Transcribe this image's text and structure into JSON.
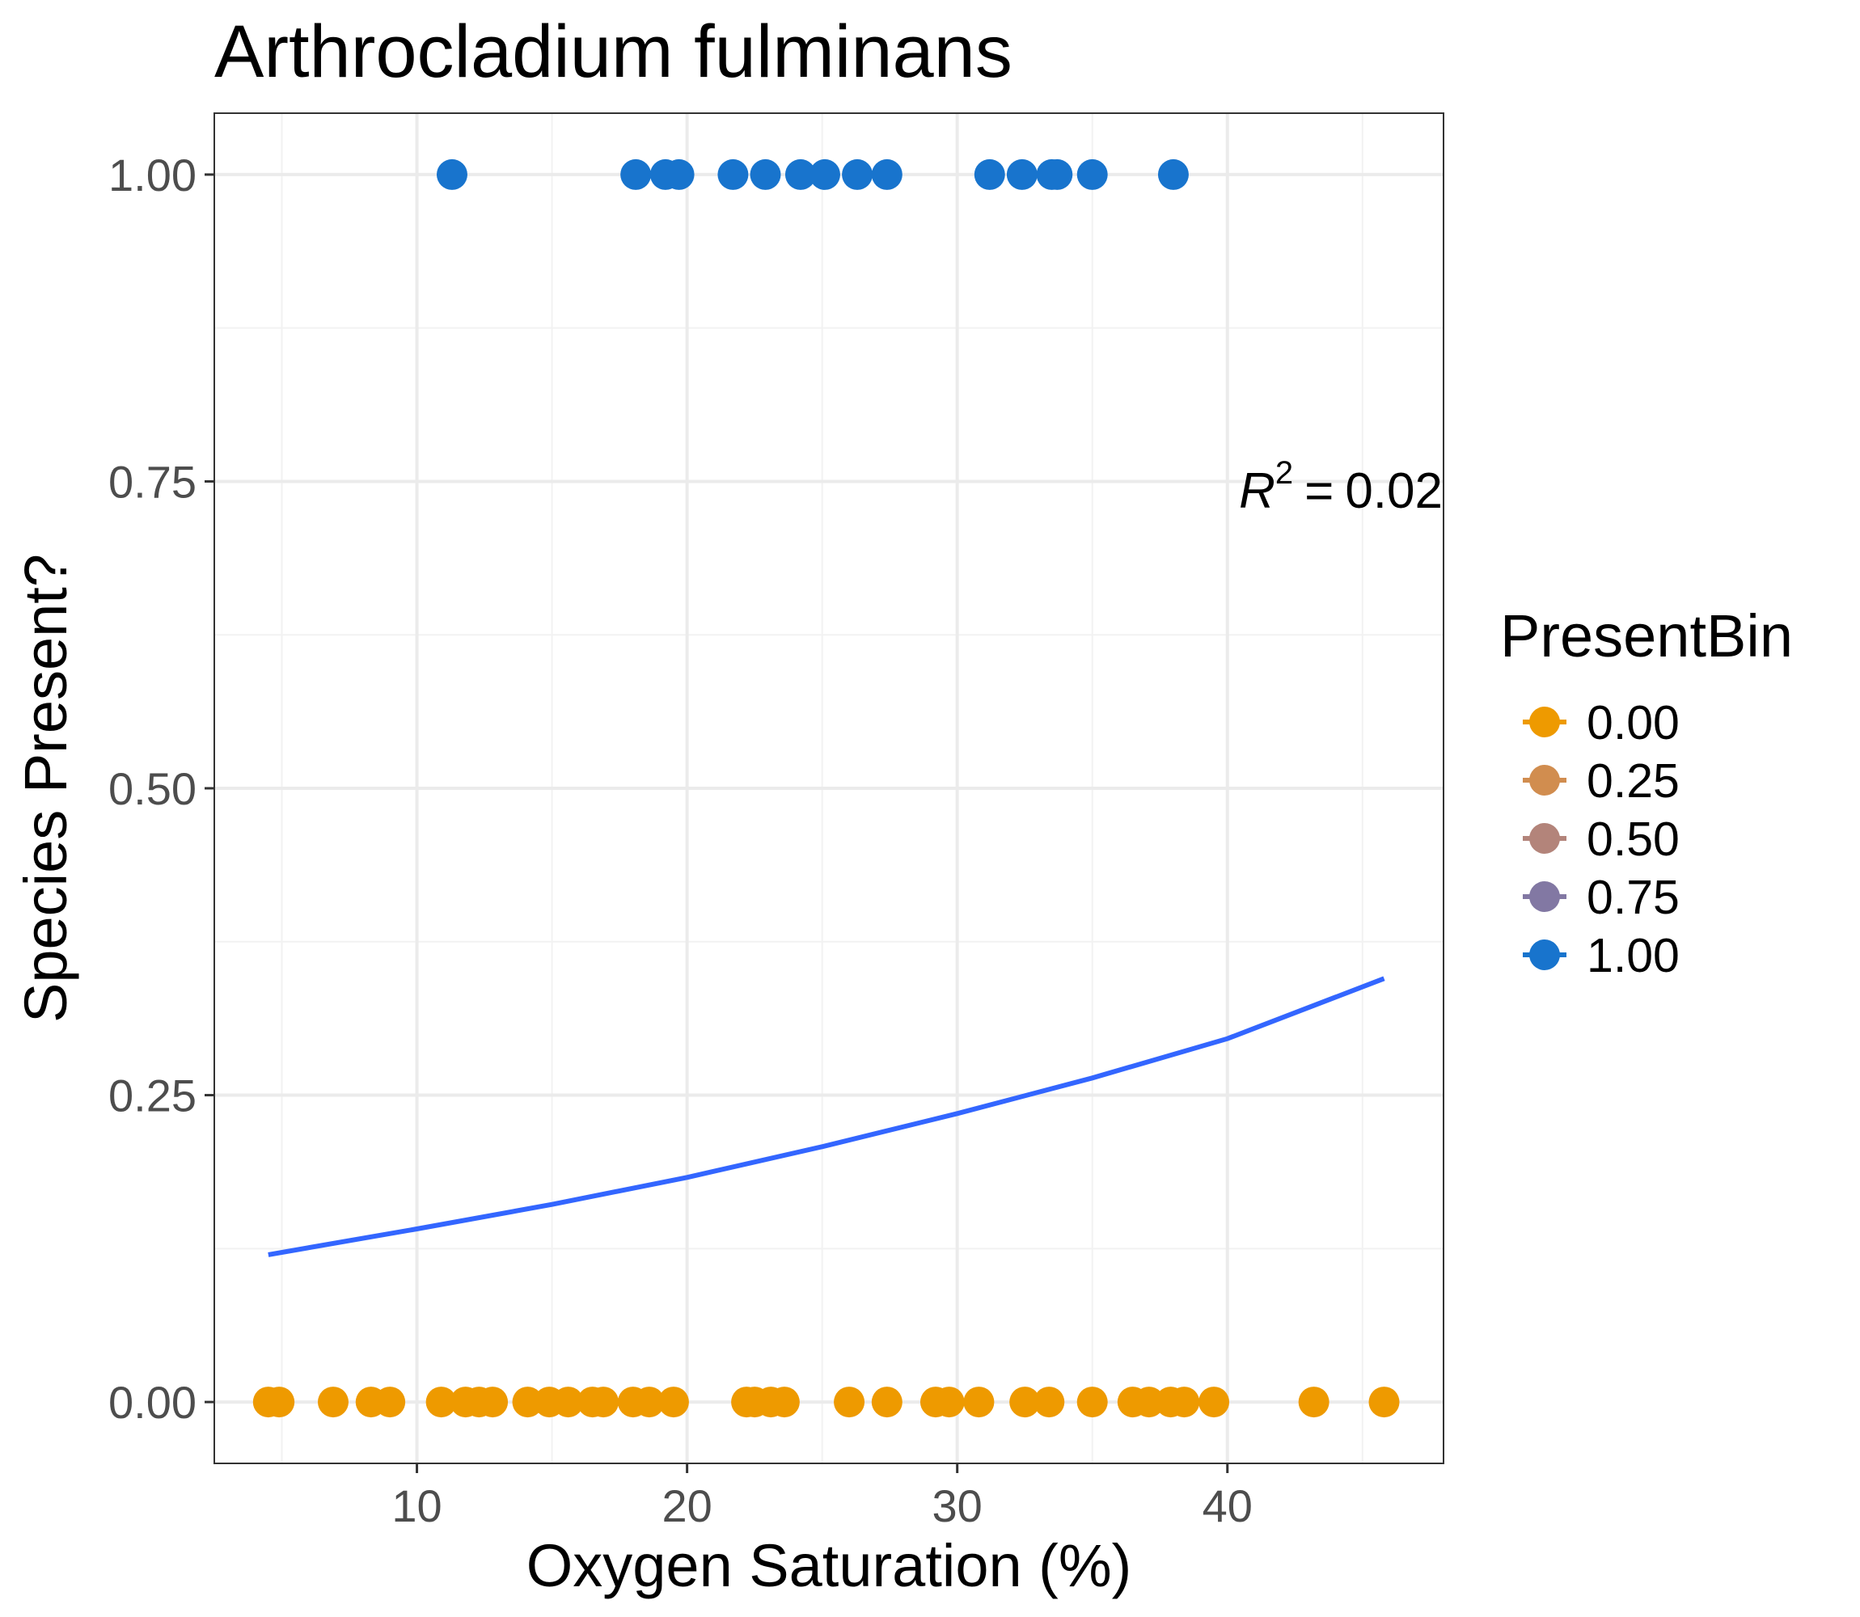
{
  "chart_data": {
    "type": "scatter",
    "title": "Arthrocladium fulminans",
    "xlabel": "Oxygen Saturation (%)",
    "ylabel": "Species Present?",
    "xlim": [
      2.5,
      48
    ],
    "ylim": [
      -0.05,
      1.05
    ],
    "x_ticks": [
      10,
      20,
      30,
      40
    ],
    "x_tick_labels": [
      "10",
      "20",
      "30",
      "40"
    ],
    "y_ticks": [
      0,
      0.25,
      0.5,
      0.75,
      1
    ],
    "y_tick_labels": [
      "0.00",
      "0.25",
      "0.50",
      "0.75",
      "1.00"
    ],
    "grid": true,
    "legend": {
      "title": "PresentBin",
      "placement": "right",
      "entries": [
        {
          "label": "0.00",
          "color": "#EE9A00"
        },
        {
          "label": "0.25",
          "color": "#D18D4F"
        },
        {
          "label": "0.50",
          "color": "#B3847A"
        },
        {
          "label": "0.75",
          "color": "#8278A3"
        },
        {
          "label": "1.00",
          "color": "#1874CD"
        }
      ]
    },
    "annotation": {
      "r_symbol": "R",
      "exponent": "2",
      "equals": "=",
      "value": "0.02"
    },
    "points": [
      {
        "x": 11.3,
        "y": 1
      },
      {
        "x": 18.1,
        "y": 1
      },
      {
        "x": 19.2,
        "y": 1
      },
      {
        "x": 19.7,
        "y": 1
      },
      {
        "x": 21.7,
        "y": 1
      },
      {
        "x": 22.9,
        "y": 1
      },
      {
        "x": 24.2,
        "y": 1
      },
      {
        "x": 25.1,
        "y": 1
      },
      {
        "x": 26.3,
        "y": 1
      },
      {
        "x": 27.4,
        "y": 1
      },
      {
        "x": 31.2,
        "y": 1
      },
      {
        "x": 32.4,
        "y": 1
      },
      {
        "x": 33.5,
        "y": 1
      },
      {
        "x": 33.7,
        "y": 1
      },
      {
        "x": 35.0,
        "y": 1
      },
      {
        "x": 38.0,
        "y": 1
      },
      {
        "x": 4.5,
        "y": 0
      },
      {
        "x": 4.9,
        "y": 0
      },
      {
        "x": 6.9,
        "y": 0
      },
      {
        "x": 8.3,
        "y": 0
      },
      {
        "x": 9.0,
        "y": 0
      },
      {
        "x": 10.9,
        "y": 0
      },
      {
        "x": 11.8,
        "y": 0
      },
      {
        "x": 12.3,
        "y": 0
      },
      {
        "x": 12.8,
        "y": 0
      },
      {
        "x": 14.1,
        "y": 0
      },
      {
        "x": 14.9,
        "y": 0
      },
      {
        "x": 15.6,
        "y": 0
      },
      {
        "x": 16.5,
        "y": 0
      },
      {
        "x": 16.9,
        "y": 0
      },
      {
        "x": 18.0,
        "y": 0
      },
      {
        "x": 18.6,
        "y": 0
      },
      {
        "x": 19.5,
        "y": 0
      },
      {
        "x": 22.2,
        "y": 0
      },
      {
        "x": 22.5,
        "y": 0
      },
      {
        "x": 23.1,
        "y": 0
      },
      {
        "x": 23.6,
        "y": 0
      },
      {
        "x": 26.0,
        "y": 0
      },
      {
        "x": 27.4,
        "y": 0
      },
      {
        "x": 29.2,
        "y": 0
      },
      {
        "x": 29.7,
        "y": 0
      },
      {
        "x": 30.8,
        "y": 0
      },
      {
        "x": 32.5,
        "y": 0
      },
      {
        "x": 33.4,
        "y": 0
      },
      {
        "x": 35.0,
        "y": 0
      },
      {
        "x": 36.5,
        "y": 0
      },
      {
        "x": 37.1,
        "y": 0
      },
      {
        "x": 37.9,
        "y": 0
      },
      {
        "x": 38.4,
        "y": 0
      },
      {
        "x": 39.5,
        "y": 0
      },
      {
        "x": 43.2,
        "y": 0
      },
      {
        "x": 45.8,
        "y": 0
      }
    ],
    "fit_curve": {
      "color": "#3366FF",
      "x": [
        4.5,
        10,
        15,
        20,
        25,
        30,
        35,
        40,
        45.8
      ],
      "y": [
        0.12,
        0.141,
        0.161,
        0.183,
        0.208,
        0.235,
        0.264,
        0.296,
        0.345
      ]
    }
  }
}
